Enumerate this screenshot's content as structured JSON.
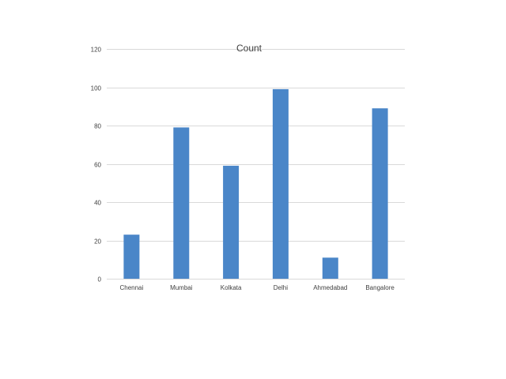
{
  "chart_data": {
    "type": "bar",
    "title": "Count",
    "xlabel": "",
    "ylabel": "",
    "categories": [
      "Chennai",
      "Mumbai",
      "Kolkata",
      "Delhi",
      "Ahmedabad",
      "Bangalore"
    ],
    "values": [
      23,
      79,
      59,
      99,
      11,
      89
    ],
    "ylim": [
      0,
      120
    ],
    "yticks": [
      "0",
      "20",
      "40",
      "60",
      "80",
      "100",
      "120"
    ],
    "grid": true,
    "legend": "none",
    "colors": {
      "bar": "#4a86c8",
      "grid": "#d9d9d9",
      "text": "#404040"
    }
  }
}
